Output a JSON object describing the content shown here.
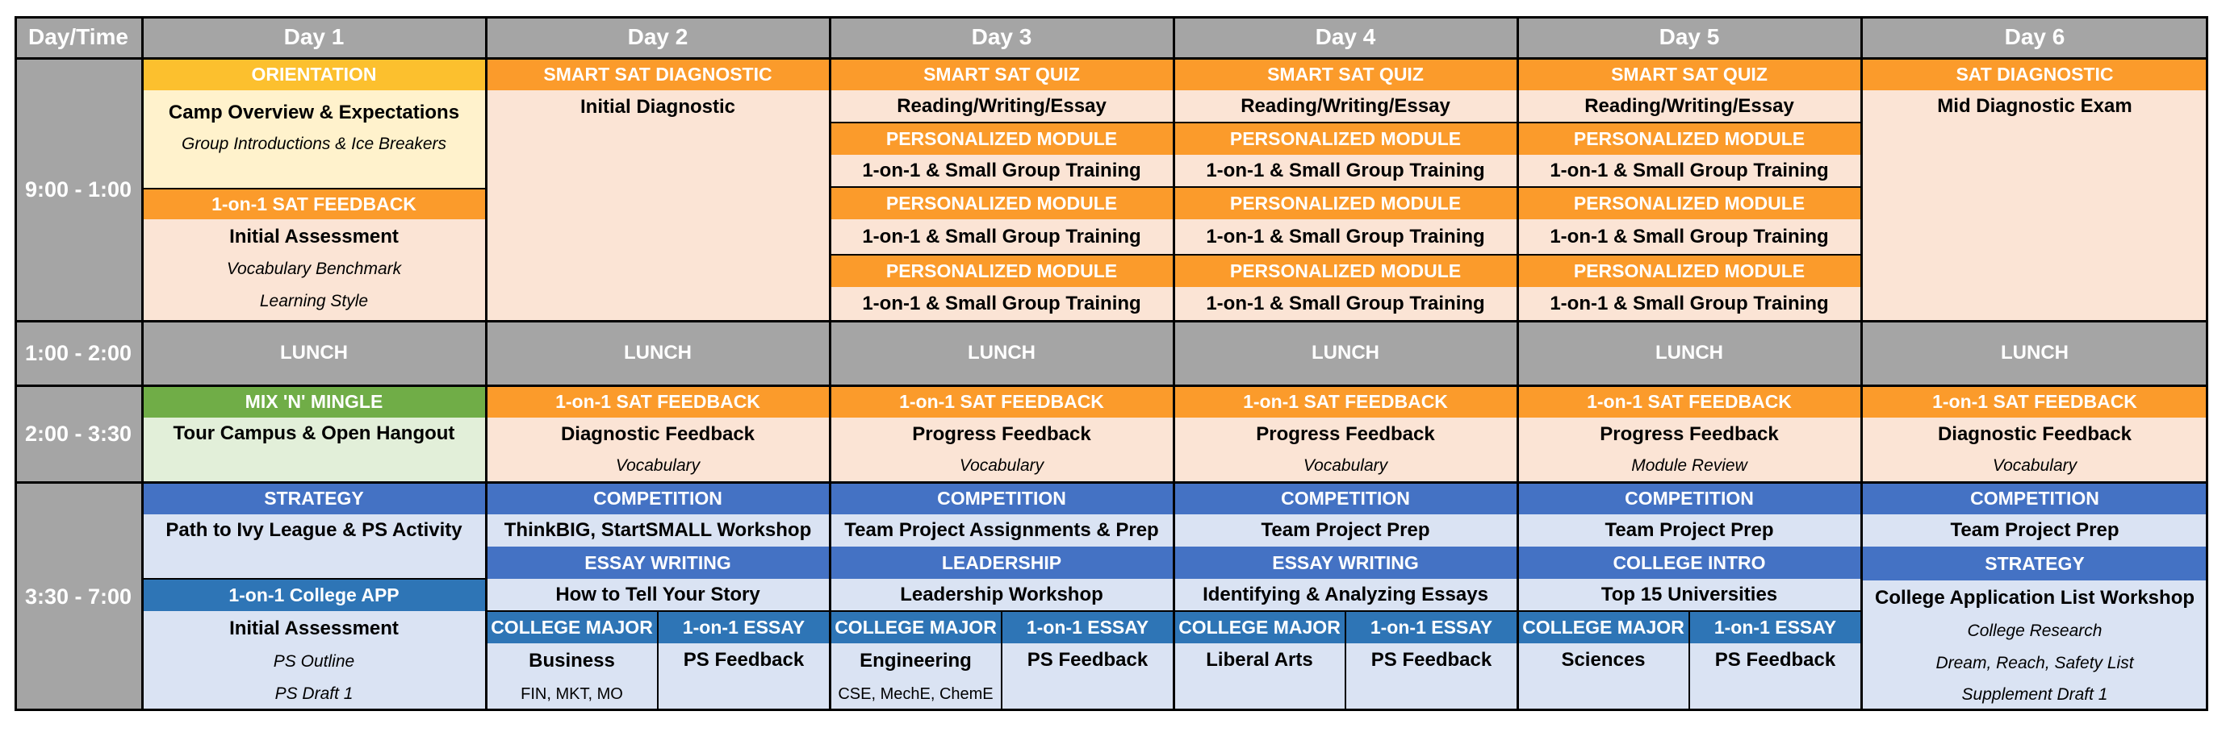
{
  "header": {
    "daytime": "Day/Time",
    "days": [
      "Day 1",
      "Day 2",
      "Day 3",
      "Day 4",
      "Day 5",
      "Day 6"
    ]
  },
  "times": {
    "morning": "9:00 - 1:00",
    "lunch": "1:00 - 2:00",
    "afternoon": "2:00 - 3:30",
    "evening": "3:30 - 7:00"
  },
  "lunch_label": "LUNCH",
  "morning": {
    "day1": {
      "orientation": "ORIENTATION",
      "camp_overview": "Camp Overview & Expectations",
      "group_intro": "Group Introductions & Ice Breakers",
      "sat_feedback": "1-on-1 SAT FEEDBACK",
      "initial_assessment": "Initial Assessment",
      "vocab_benchmark": "Vocabulary Benchmark",
      "learning_style": "Learning Style"
    },
    "day2": {
      "header": "SMART SAT DIAGNOSTIC",
      "desc": "Initial Diagnostic"
    },
    "quiz_header": "SMART SAT QUIZ",
    "quiz_desc": "Reading/Writing/Essay",
    "module_header": "PERSONALIZED MODULE",
    "module_desc": "1-on-1 & Small Group Training",
    "day6": {
      "header": "SAT DIAGNOSTIC",
      "desc": "Mid Diagnostic Exam"
    }
  },
  "afternoon": {
    "day1": {
      "header": "MIX 'N' MINGLE",
      "desc": "Tour Campus & Open Hangout"
    },
    "feedback_header": "1-on-1 SAT FEEDBACK",
    "day2": {
      "desc": "Diagnostic Feedback",
      "sub": "Vocabulary"
    },
    "day3": {
      "desc": "Progress Feedback",
      "sub": "Vocabulary"
    },
    "day4": {
      "desc": "Progress Feedback",
      "sub": "Vocabulary"
    },
    "day5": {
      "desc": "Progress Feedback",
      "sub": "Module Review"
    },
    "day6": {
      "desc": "Diagnostic Feedback",
      "sub": "Vocabulary"
    }
  },
  "evening": {
    "day1": {
      "strategy": "STRATEGY",
      "strategy_desc": "Path to Ivy League & PS Activity",
      "college_app": "1-on-1 College APP",
      "initial_assessment": "Initial Assessment",
      "ps_outline": "PS Outline",
      "ps_draft": "PS Draft 1"
    },
    "competition": "COMPETITION",
    "day2": {
      "comp_desc": "ThinkBIG, StartSMALL Workshop",
      "second_header": "ESSAY WRITING",
      "second_desc": "How to Tell Your Story",
      "major_label": "Business",
      "major_sub": "FIN, MKT, MO"
    },
    "day3": {
      "comp_desc": "Team Project Assignments & Prep",
      "second_header": "LEADERSHIP",
      "second_desc": "Leadership Workshop",
      "major_label": "Engineering",
      "major_sub": "CSE, MechE, ChemE"
    },
    "day4": {
      "comp_desc": "Team Project Prep",
      "second_header": "ESSAY WRITING",
      "second_desc": "Identifying & Analyzing Essays",
      "major_label": "Liberal Arts"
    },
    "day5": {
      "comp_desc": "Team Project Prep",
      "second_header": "COLLEGE INTRO",
      "second_desc": "Top 15 Universities",
      "major_label": "Sciences"
    },
    "college_major": "COLLEGE MAJOR",
    "essay_header": "1-on-1 ESSAY",
    "ps_feedback": "PS Feedback",
    "day6": {
      "comp_desc": "Team Project Prep",
      "strategy": "STRATEGY",
      "strategy_desc": "College Application List Workshop",
      "research": "College Research",
      "dream": "Dream, Reach, Safety List",
      "supplement": "Supplement Draft 1"
    }
  },
  "colors": {
    "header_gray": "#a5a5a5",
    "orange": "#fb9b2b",
    "yellow": "#fcc02e",
    "green": "#70ad47",
    "blue": "#4472c4",
    "peach": "#fbe4d5",
    "light_blue": "#dae3f3"
  }
}
